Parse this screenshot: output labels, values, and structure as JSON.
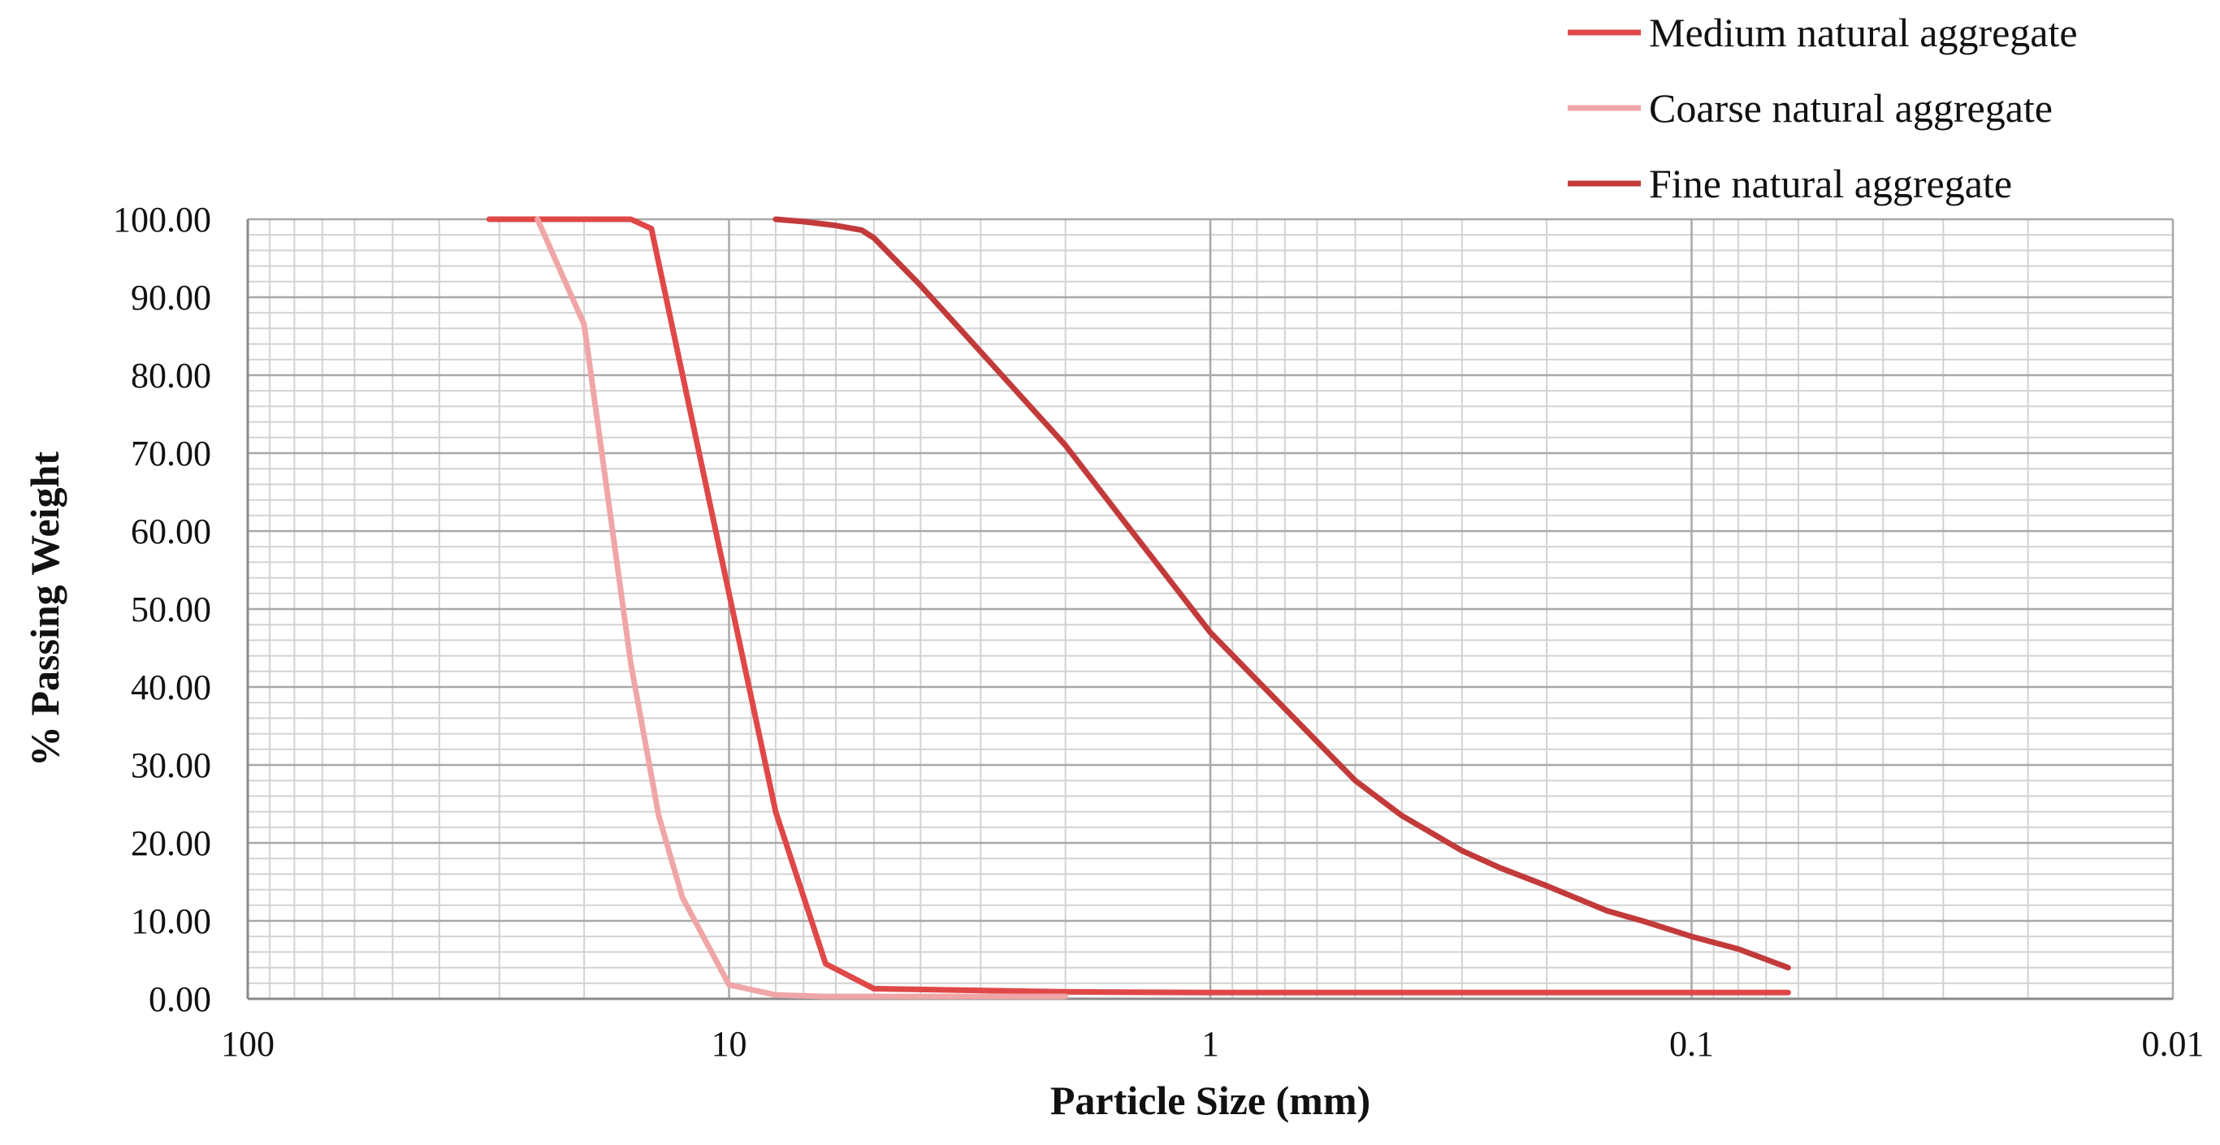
{
  "chart_data": {
    "type": "line",
    "title": "",
    "xlabel": "Particle Size (mm)",
    "ylabel": "% Passing Weight",
    "x_scale": "log",
    "x_reversed": true,
    "xlim": [
      100,
      0.01
    ],
    "ylim": [
      0,
      100
    ],
    "grid": true,
    "legend_position": "top-right",
    "x_tick_labels": [
      {
        "value": 100,
        "label": "100"
      },
      {
        "value": 10,
        "label": "10"
      },
      {
        "value": 1,
        "label": "1"
      },
      {
        "value": 0.1,
        "label": "0.1"
      },
      {
        "value": 0.01,
        "label": "0.01"
      }
    ],
    "y_tick_labels": [
      {
        "value": 100,
        "label": "100.00"
      },
      {
        "value": 90,
        "label": "90.00"
      },
      {
        "value": 80,
        "label": "80.00"
      },
      {
        "value": 70,
        "label": "70.00"
      },
      {
        "value": 60,
        "label": "60.00"
      },
      {
        "value": 50,
        "label": "50.00"
      },
      {
        "value": 40,
        "label": "40.00"
      },
      {
        "value": 30,
        "label": "30.00"
      },
      {
        "value": 20,
        "label": "20.00"
      },
      {
        "value": 10,
        "label": "10.00"
      },
      {
        "value": 0,
        "label": "0.00"
      }
    ],
    "series": [
      {
        "name": "Medium natural aggregate",
        "color": "#e04848",
        "points": [
          [
            31.5,
            100
          ],
          [
            16,
            100
          ],
          [
            14.5,
            98.8
          ],
          [
            10,
            52
          ],
          [
            8,
            24
          ],
          [
            6.3,
            4.5
          ],
          [
            5,
            1.3
          ],
          [
            2,
            0.9
          ],
          [
            1,
            0.8
          ],
          [
            0.5,
            0.8
          ],
          [
            0.25,
            0.8
          ],
          [
            0.063,
            0.8
          ]
        ]
      },
      {
        "name": "Coarse natural aggregate",
        "color": "#f0a6a6",
        "points": [
          [
            25,
            100
          ],
          [
            20,
            86.5
          ],
          [
            16,
            43
          ],
          [
            14,
            23.5
          ],
          [
            12.5,
            13
          ],
          [
            10,
            1.8
          ],
          [
            8,
            0.5
          ],
          [
            6.3,
            0.3
          ],
          [
            4,
            0.3
          ],
          [
            2,
            0.3
          ]
        ]
      },
      {
        "name": "Fine natural aggregate",
        "color": "#c33a3a",
        "points": [
          [
            8,
            100
          ],
          [
            7,
            99.7
          ],
          [
            6,
            99.2
          ],
          [
            5.3,
            98.6
          ],
          [
            5,
            97.6
          ],
          [
            4,
            91.5
          ],
          [
            3,
            83
          ],
          [
            2,
            71
          ],
          [
            1.5,
            61
          ],
          [
            1,
            47
          ],
          [
            0.6,
            33
          ],
          [
            0.5,
            28
          ],
          [
            0.4,
            23.5
          ],
          [
            0.3,
            19
          ],
          [
            0.25,
            16.8
          ],
          [
            0.2,
            14.5
          ],
          [
            0.15,
            11.3
          ],
          [
            0.125,
            9.9
          ],
          [
            0.1,
            8
          ],
          [
            0.08,
            6.4
          ],
          [
            0.063,
            4
          ]
        ]
      }
    ]
  }
}
